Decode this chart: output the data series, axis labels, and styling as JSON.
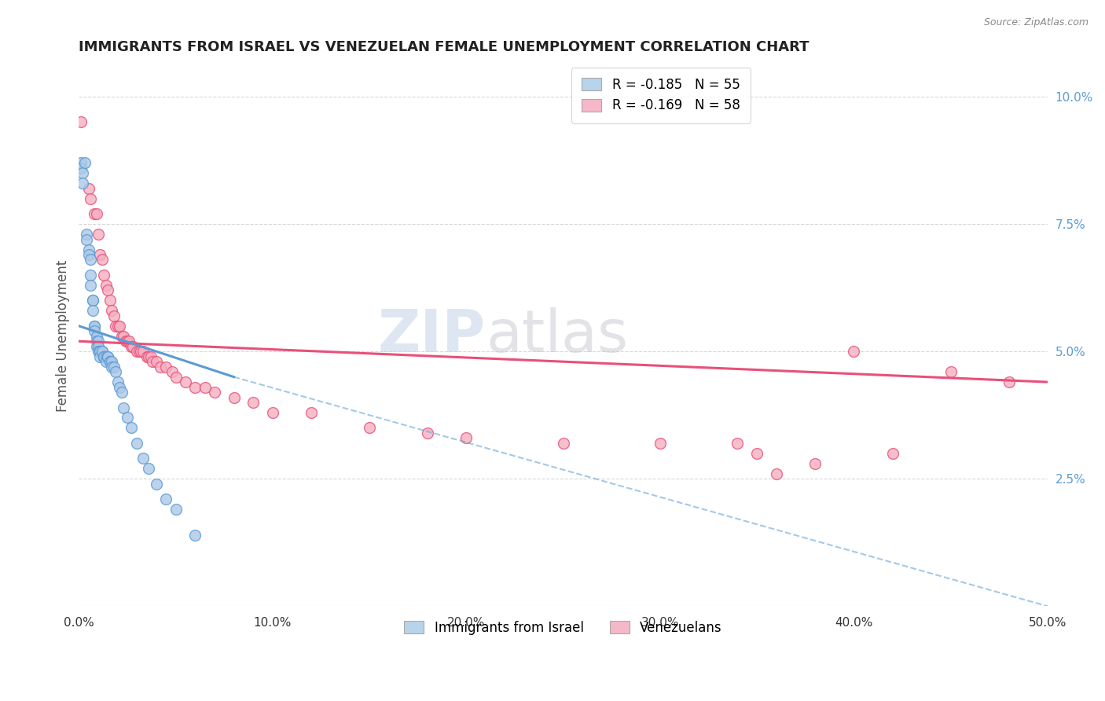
{
  "title": "IMMIGRANTS FROM ISRAEL VS VENEZUELAN FEMALE UNEMPLOYMENT CORRELATION CHART",
  "source": "Source: ZipAtlas.com",
  "ylabel": "Female Unemployment",
  "xlim": [
    0.0,
    0.5
  ],
  "ylim": [
    0.0,
    0.106
  ],
  "xticks": [
    0.0,
    0.1,
    0.2,
    0.3,
    0.4,
    0.5
  ],
  "xtick_labels": [
    "0.0%",
    "10.0%",
    "20.0%",
    "30.0%",
    "40.0%",
    "50.0%"
  ],
  "yticks_right": [
    0.025,
    0.05,
    0.075,
    0.1
  ],
  "ytick_labels_right": [
    "2.5%",
    "5.0%",
    "7.5%",
    "10.0%"
  ],
  "legend_entries": [
    {
      "label": "R = -0.185   N = 55",
      "color": "#b8d4ea"
    },
    {
      "label": "R = -0.169   N = 58",
      "color": "#f5b8c8"
    }
  ],
  "legend_bottom": [
    {
      "label": "Immigrants from Israel",
      "color": "#b8d4ea"
    },
    {
      "label": "Venezuelans",
      "color": "#f5b8c8"
    }
  ],
  "watermark_zip": "ZIP",
  "watermark_atlas": "atlas",
  "israel_scatter": [
    [
      0.001,
      0.087
    ],
    [
      0.001,
      0.086
    ],
    [
      0.002,
      0.085
    ],
    [
      0.002,
      0.083
    ],
    [
      0.003,
      0.087
    ],
    [
      0.004,
      0.073
    ],
    [
      0.004,
      0.072
    ],
    [
      0.005,
      0.07
    ],
    [
      0.005,
      0.069
    ],
    [
      0.006,
      0.068
    ],
    [
      0.006,
      0.065
    ],
    [
      0.006,
      0.063
    ],
    [
      0.007,
      0.06
    ],
    [
      0.007,
      0.06
    ],
    [
      0.007,
      0.058
    ],
    [
      0.008,
      0.055
    ],
    [
      0.008,
      0.055
    ],
    [
      0.008,
      0.054
    ],
    [
      0.009,
      0.053
    ],
    [
      0.009,
      0.052
    ],
    [
      0.009,
      0.051
    ],
    [
      0.01,
      0.052
    ],
    [
      0.01,
      0.051
    ],
    [
      0.01,
      0.05
    ],
    [
      0.011,
      0.05
    ],
    [
      0.011,
      0.05
    ],
    [
      0.011,
      0.049
    ],
    [
      0.012,
      0.05
    ],
    [
      0.012,
      0.05
    ],
    [
      0.013,
      0.049
    ],
    [
      0.013,
      0.049
    ],
    [
      0.013,
      0.049
    ],
    [
      0.014,
      0.049
    ],
    [
      0.014,
      0.048
    ],
    [
      0.015,
      0.049
    ],
    [
      0.015,
      0.049
    ],
    [
      0.016,
      0.048
    ],
    [
      0.016,
      0.048
    ],
    [
      0.017,
      0.048
    ],
    [
      0.017,
      0.047
    ],
    [
      0.018,
      0.047
    ],
    [
      0.019,
      0.046
    ],
    [
      0.02,
      0.044
    ],
    [
      0.021,
      0.043
    ],
    [
      0.022,
      0.042
    ],
    [
      0.023,
      0.039
    ],
    [
      0.025,
      0.037
    ],
    [
      0.027,
      0.035
    ],
    [
      0.03,
      0.032
    ],
    [
      0.033,
      0.029
    ],
    [
      0.036,
      0.027
    ],
    [
      0.04,
      0.024
    ],
    [
      0.045,
      0.021
    ],
    [
      0.05,
      0.019
    ],
    [
      0.06,
      0.014
    ]
  ],
  "venezuela_scatter": [
    [
      0.001,
      0.095
    ],
    [
      0.005,
      0.082
    ],
    [
      0.006,
      0.08
    ],
    [
      0.008,
      0.077
    ],
    [
      0.009,
      0.077
    ],
    [
      0.01,
      0.073
    ],
    [
      0.011,
      0.069
    ],
    [
      0.012,
      0.068
    ],
    [
      0.013,
      0.065
    ],
    [
      0.014,
      0.063
    ],
    [
      0.015,
      0.062
    ],
    [
      0.016,
      0.06
    ],
    [
      0.017,
      0.058
    ],
    [
      0.018,
      0.057
    ],
    [
      0.019,
      0.055
    ],
    [
      0.02,
      0.055
    ],
    [
      0.021,
      0.055
    ],
    [
      0.022,
      0.053
    ],
    [
      0.023,
      0.053
    ],
    [
      0.024,
      0.052
    ],
    [
      0.025,
      0.052
    ],
    [
      0.026,
      0.052
    ],
    [
      0.027,
      0.051
    ],
    [
      0.028,
      0.051
    ],
    [
      0.03,
      0.05
    ],
    [
      0.031,
      0.05
    ],
    [
      0.032,
      0.05
    ],
    [
      0.033,
      0.05
    ],
    [
      0.035,
      0.049
    ],
    [
      0.036,
      0.049
    ],
    [
      0.037,
      0.049
    ],
    [
      0.038,
      0.048
    ],
    [
      0.04,
      0.048
    ],
    [
      0.042,
      0.047
    ],
    [
      0.045,
      0.047
    ],
    [
      0.048,
      0.046
    ],
    [
      0.05,
      0.045
    ],
    [
      0.055,
      0.044
    ],
    [
      0.06,
      0.043
    ],
    [
      0.065,
      0.043
    ],
    [
      0.07,
      0.042
    ],
    [
      0.08,
      0.041
    ],
    [
      0.09,
      0.04
    ],
    [
      0.1,
      0.038
    ],
    [
      0.12,
      0.038
    ],
    [
      0.15,
      0.035
    ],
    [
      0.18,
      0.034
    ],
    [
      0.2,
      0.033
    ],
    [
      0.25,
      0.032
    ],
    [
      0.3,
      0.032
    ],
    [
      0.34,
      0.032
    ],
    [
      0.35,
      0.03
    ],
    [
      0.36,
      0.026
    ],
    [
      0.38,
      0.028
    ],
    [
      0.4,
      0.05
    ],
    [
      0.42,
      0.03
    ],
    [
      0.45,
      0.046
    ],
    [
      0.48,
      0.044
    ]
  ],
  "israel_line_solid": {
    "x0": 0.0,
    "y0": 0.055,
    "x1": 0.08,
    "y1": 0.045
  },
  "israel_line_dashed": {
    "x0": 0.08,
    "y0": 0.045,
    "x1": 0.5,
    "y1": 0.0
  },
  "venezuela_line": {
    "x0": 0.0,
    "y0": 0.052,
    "x1": 0.5,
    "y1": 0.044
  },
  "israel_color": "#5b9bd5",
  "venezuela_color": "#e8507a",
  "israel_scatter_color": "#adc8e8",
  "venezuela_scatter_color": "#f5b0c0",
  "background_color": "#ffffff",
  "grid_color": "#d8d8d8",
  "title_color": "#222222",
  "right_axis_color": "#5b9bd5",
  "marker_size": 100
}
